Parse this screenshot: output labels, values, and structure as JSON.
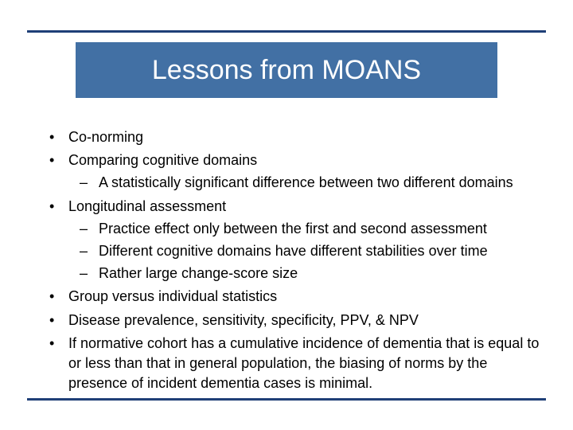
{
  "title": "Lessons from MOANS",
  "bullets": [
    {
      "text": "Co-norming"
    },
    {
      "text": "Comparing cognitive domains",
      "sub": [
        "A statistically significant difference between two different domains"
      ]
    },
    {
      "text": "Longitudinal assessment",
      "sub": [
        "Practice effect only between the first and second assessment",
        "Different cognitive domains have different stabilities over time",
        "Rather large change-score size"
      ]
    },
    {
      "text": "Group versus individual statistics"
    },
    {
      "text": "Disease prevalence, sensitivity, specificity, PPV, & NPV"
    },
    {
      "text": "If normative cohort has a cumulative incidence of dementia that is equal to or less than that in general population, the biasing of norms by the presence of incident dementia cases is minimal."
    }
  ],
  "colors": {
    "rule": "#1f3f77",
    "title_bg": "#4270a4",
    "title_fg": "#ffffff",
    "body_bg": "#ffffff",
    "text": "#000000"
  }
}
